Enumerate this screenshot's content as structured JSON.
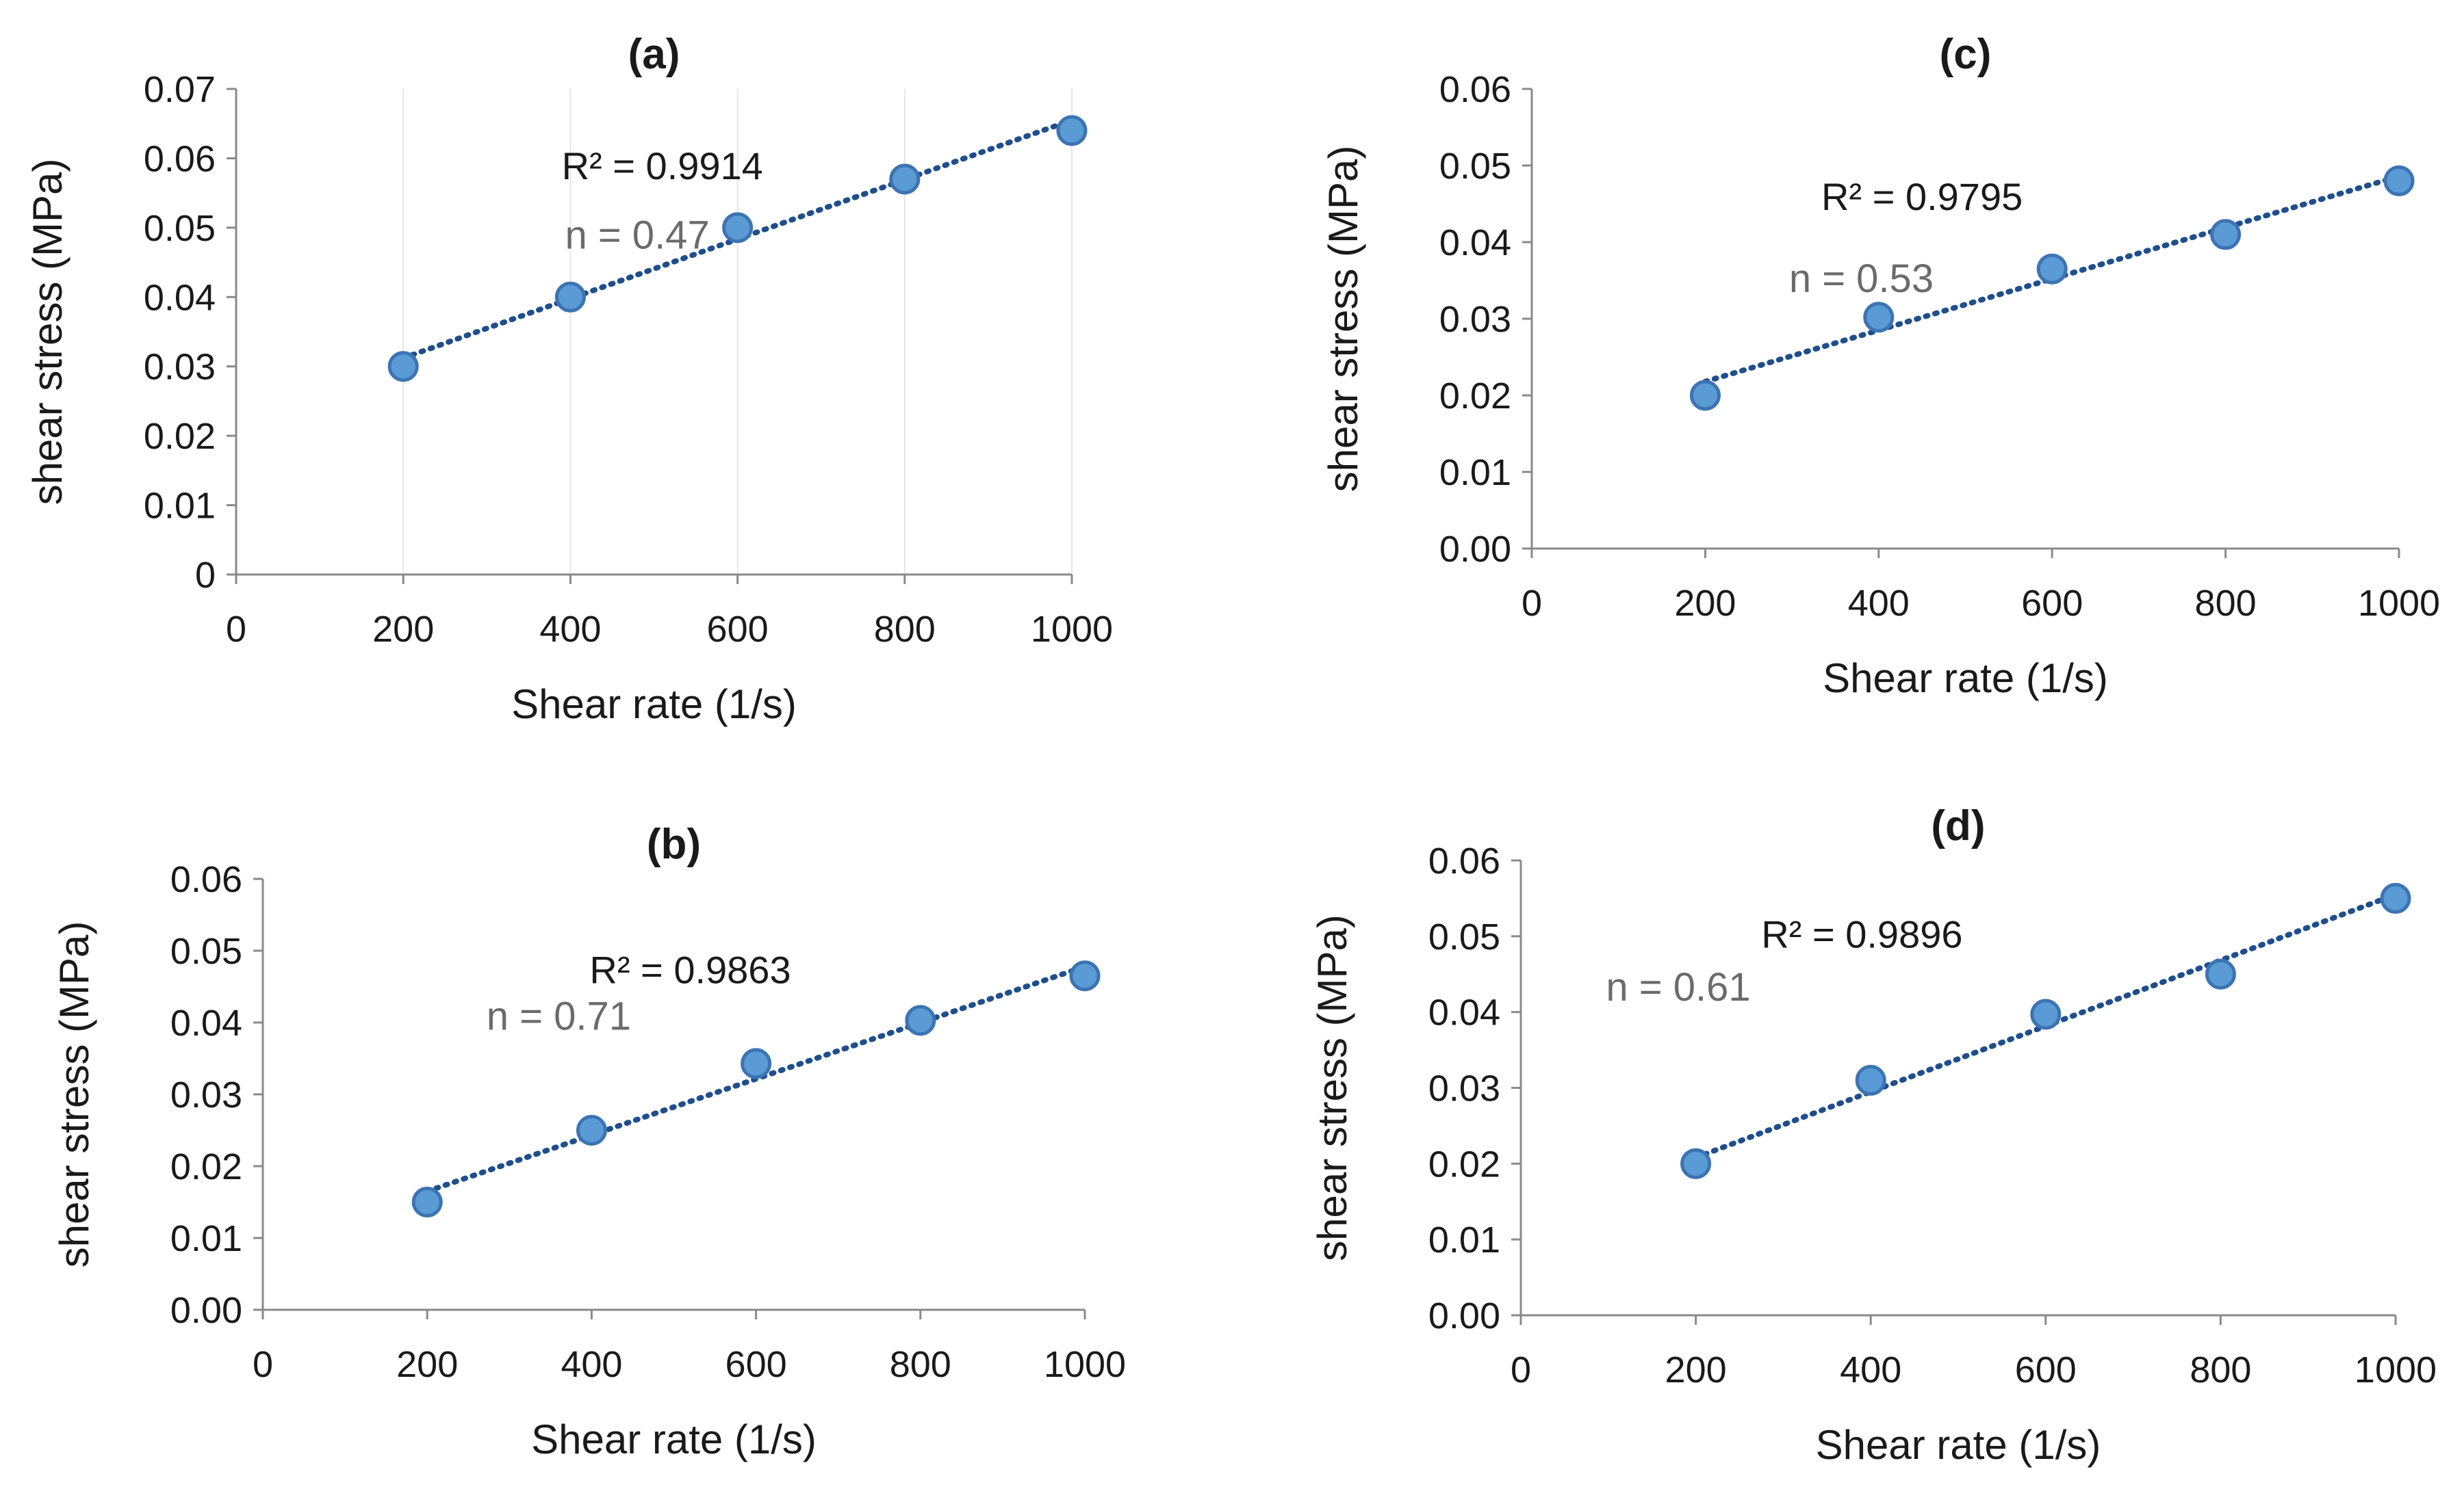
{
  "chart_data": [
    {
      "id": "a",
      "type": "scatter",
      "title": "(a)",
      "xlabel": "Shear rate (1/s)",
      "ylabel": "shear stress (MPa)",
      "xlim": [
        0,
        1000
      ],
      "ylim": [
        0,
        0.07
      ],
      "xticks": [
        0,
        200,
        400,
        600,
        800,
        1000
      ],
      "yticks": [
        0,
        0.01,
        0.02,
        0.03,
        0.04,
        0.05,
        0.06,
        0.07
      ],
      "ytick_labels": [
        "0",
        "0.01",
        "0.02",
        "0.03",
        "0.04",
        "0.05",
        "0.06",
        "0.07"
      ],
      "vertical_grid": true,
      "x": [
        200,
        400,
        600,
        800,
        1000
      ],
      "y": [
        0.03,
        0.04,
        0.05,
        0.057,
        0.064
      ],
      "trendline": {
        "x": [
          200,
          1000
        ],
        "y": [
          0.0312,
          0.0655
        ]
      },
      "r2_label": "R² = 0.9914",
      "r2_pos": [
        510,
        0.057
      ],
      "n_label": "n = 0.47",
      "n_pos": [
        480,
        0.047
      ]
    },
    {
      "id": "b",
      "type": "scatter",
      "title": "(b)",
      "xlabel": "Shear rate (1/s)",
      "ylabel": "shear stress  (MPa)",
      "xlim": [
        0,
        1000
      ],
      "ylim": [
        0,
        0.06
      ],
      "xticks": [
        0,
        200,
        400,
        600,
        800,
        1000
      ],
      "yticks": [
        0,
        0.01,
        0.02,
        0.03,
        0.04,
        0.05,
        0.06
      ],
      "ytick_labels": [
        "0.00",
        "0.01",
        "0.02",
        "0.03",
        "0.04",
        "0.05",
        "0.06"
      ],
      "vertical_grid": false,
      "x": [
        200,
        400,
        600,
        800,
        1000
      ],
      "y": [
        0.015,
        0.025,
        0.0343,
        0.0403,
        0.0465
      ],
      "trendline": {
        "x": [
          200,
          1000
        ],
        "y": [
          0.0165,
          0.0478
        ]
      },
      "r2_label": "R² = 0.9863",
      "r2_pos": [
        520,
        0.0455
      ],
      "n_label": "n = 0.71",
      "n_pos": [
        360,
        0.039
      ]
    },
    {
      "id": "c",
      "type": "scatter",
      "title": "(c)",
      "xlabel": "Shear rate (1/s)",
      "ylabel": "shear stress (MPa)",
      "xlim": [
        0,
        1000
      ],
      "ylim": [
        0,
        0.06
      ],
      "xticks": [
        0,
        200,
        400,
        600,
        800,
        1000
      ],
      "yticks": [
        0,
        0.01,
        0.02,
        0.03,
        0.04,
        0.05,
        0.06
      ],
      "ytick_labels": [
        "0.00",
        "0.01",
        "0.02",
        "0.03",
        "0.04",
        "0.05",
        "0.06"
      ],
      "vertical_grid": false,
      "x": [
        200,
        400,
        600,
        800,
        1000
      ],
      "y": [
        0.02,
        0.0302,
        0.0365,
        0.041,
        0.048
      ],
      "trendline": {
        "x": [
          200,
          1000
        ],
        "y": [
          0.0218,
          0.0486
        ]
      },
      "r2_label": "R² = 0.9795",
      "r2_pos": [
        450,
        0.0442
      ],
      "n_label": "n = 0.53",
      "n_pos": [
        380,
        0.0335
      ]
    },
    {
      "id": "d",
      "type": "scatter",
      "title": "(d)",
      "xlabel": "Shear rate (1/s)",
      "ylabel": "shear stress  (MPa)",
      "xlim": [
        0,
        1000
      ],
      "ylim": [
        0,
        0.06
      ],
      "xticks": [
        0,
        200,
        400,
        600,
        800,
        1000
      ],
      "yticks": [
        0,
        0.01,
        0.02,
        0.03,
        0.04,
        0.05,
        0.06
      ],
      "ytick_labels": [
        "0.00",
        "0.01",
        "0.02",
        "0.03",
        "0.04",
        "0.05",
        "0.06"
      ],
      "vertical_grid": false,
      "x": [
        200,
        400,
        600,
        800,
        1000
      ],
      "y": [
        0.02,
        0.031,
        0.0397,
        0.045,
        0.055
      ],
      "trendline": {
        "x": [
          200,
          1000
        ],
        "y": [
          0.0208,
          0.0555
        ]
      },
      "r2_label": "R² = 0.9896",
      "r2_pos": [
        390,
        0.0485
      ],
      "n_label": "n = 0.61",
      "n_pos": [
        180,
        0.0415
      ]
    }
  ]
}
